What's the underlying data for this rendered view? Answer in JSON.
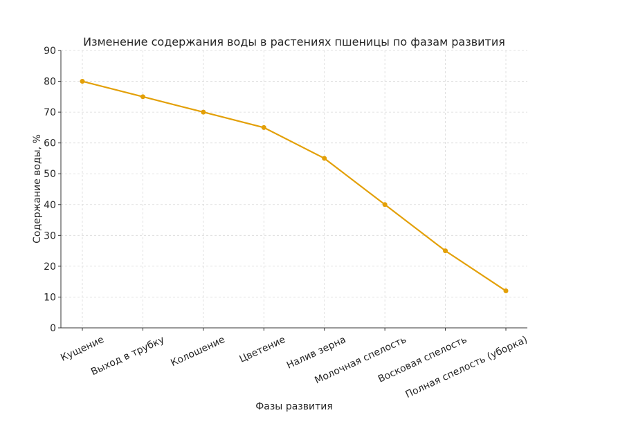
{
  "chart_data": {
    "type": "line",
    "title": "Изменение содержания воды в растениях пшеницы по фазам развития",
    "xlabel": "Фазы развития",
    "ylabel": "Содержание воды, %",
    "categories": [
      "Кущение",
      "Выход в трубку",
      "Колошение",
      "Цветение",
      "Налив зерна",
      "Молочная спелость",
      "Восковая спелость",
      "Полная спелость (уборка)"
    ],
    "values": [
      80,
      75,
      70,
      65,
      55,
      40,
      25,
      12
    ],
    "ylim": [
      0,
      90
    ],
    "yticks": [
      "0",
      "10",
      "20",
      "30",
      "40",
      "50",
      "60",
      "70",
      "80",
      "90"
    ],
    "grid": true,
    "marker": "circle",
    "color": "#e3a008"
  }
}
